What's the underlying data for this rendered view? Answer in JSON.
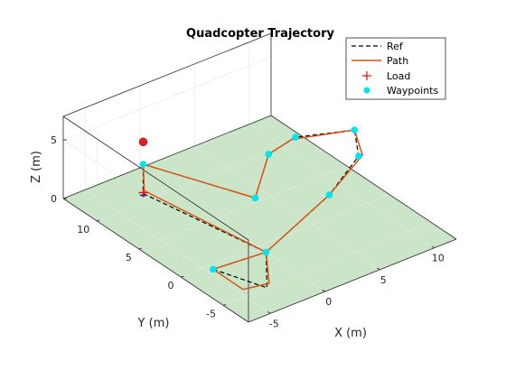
{
  "chart_data": {
    "type": "line",
    "title": "Quadcopter Trajectory",
    "xlabel": "X (m)",
    "ylabel": "Y (m)",
    "zlabel": "Z (m)",
    "xlim": [
      -7,
      12
    ],
    "ylim": [
      -8,
      14
    ],
    "zlim": [
      0,
      7
    ],
    "xticks": [
      -5,
      0,
      5,
      10
    ],
    "yticks": [
      -5,
      0,
      5,
      10
    ],
    "zticks": [
      0,
      5
    ],
    "grid": true,
    "legend_position": "top-right",
    "ground_color": "#cbe5c9",
    "series": [
      {
        "name": "Ref",
        "style": "dashed",
        "color": "#000000",
        "points": [
          [
            -6.0,
            -2.5,
            1.5
          ],
          [
            -3.0,
            -5.0,
            0.0
          ],
          [
            0.0,
            -1.0,
            0.0
          ],
          [
            -2.0,
            11.0,
            0.0
          ],
          [
            -2.0,
            11.0,
            2.5
          ],
          [
            -1.0,
            -1.0,
            5.0
          ],
          [
            1.0,
            0.0,
            7.5
          ],
          [
            5.0,
            2.0,
            6.5
          ],
          [
            10.0,
            1.5,
            5.5
          ],
          [
            10.0,
            1.0,
            3.5
          ],
          [
            5.0,
            -2.0,
            3.5
          ],
          [
            0.0,
            -1.0,
            0.0
          ],
          [
            -6.0,
            -2.5,
            1.5
          ]
        ]
      },
      {
        "name": "Path",
        "style": "solid",
        "color": "#d95319",
        "points": [
          [
            -6.0,
            -2.5,
            1.5
          ],
          [
            -4.8,
            -4.5,
            0.3
          ],
          [
            -2.5,
            -4.6,
            0.0
          ],
          [
            0.0,
            -1.0,
            0.0
          ],
          [
            -1.9,
            11.0,
            0.2
          ],
          [
            -2.0,
            11.0,
            2.5
          ],
          [
            -1.0,
            -1.0,
            5.0
          ],
          [
            1.0,
            0.0,
            7.5
          ],
          [
            4.5,
            1.8,
            6.6
          ],
          [
            10.0,
            1.5,
            5.5
          ],
          [
            10.2,
            0.8,
            3.6
          ],
          [
            5.0,
            -2.0,
            3.5
          ],
          [
            0.0,
            -1.0,
            0.0
          ],
          [
            -6.0,
            -2.5,
            1.5
          ]
        ]
      }
    ],
    "waypoints": {
      "name": "Waypoints",
      "color": "#00e5ee",
      "points": [
        [
          -6.0,
          -2.5,
          1.5
        ],
        [
          0.0,
          -1.0,
          0.0
        ],
        [
          -2.0,
          11.0,
          2.5
        ],
        [
          -1.0,
          -1.0,
          5.0
        ],
        [
          1.0,
          0.0,
          7.5
        ],
        [
          5.0,
          2.0,
          6.5
        ],
        [
          10.0,
          1.5,
          5.5
        ],
        [
          10.0,
          1.0,
          3.5
        ],
        [
          5.0,
          -2.0,
          3.5
        ]
      ]
    },
    "load": {
      "name": "Load",
      "color": "#ff0000",
      "point": [
        -2.0,
        11.0,
        0.0
      ]
    },
    "payload": {
      "color": "#e02020",
      "point": [
        -2.0,
        11.0,
        4.4
      ]
    }
  }
}
